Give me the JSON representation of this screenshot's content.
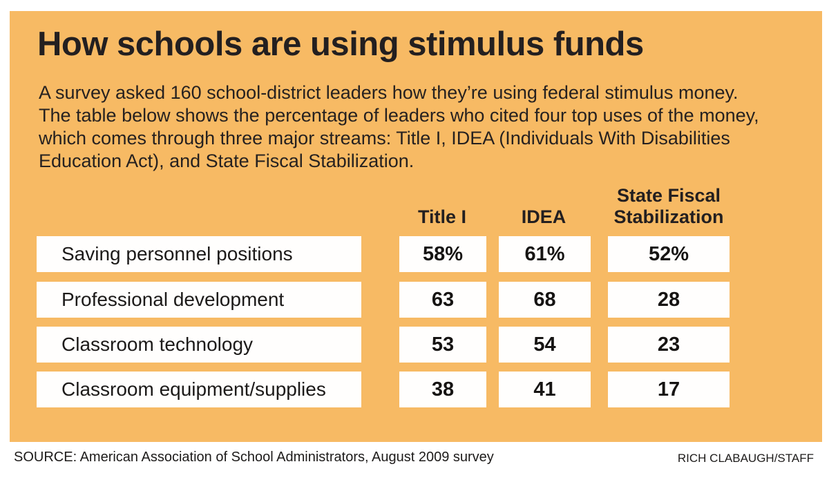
{
  "infographic": {
    "title": "How schools are using stimulus funds",
    "description": "A survey asked 160 school-district leaders how they’re using federal stimulus money. The table below shows the percentage of leaders who cited four top uses of the money, which comes through three major streams: Title I, IDEA (Individuals With Disabilities Education Act), and State Fiscal Stabilization.",
    "colors": {
      "panel_background": "#F7BA64",
      "heading_text": "#231F20",
      "cell_background": "#FFFFFF"
    }
  },
  "chart_data": {
    "type": "table",
    "title": "How schools are using stimulus funds",
    "columns": [
      "Title I",
      "IDEA",
      "State Fiscal Stabilization"
    ],
    "rows": [
      {
        "label": "Saving personnel positions",
        "values": [
          "58%",
          "61%",
          "52%"
        ]
      },
      {
        "label": "Professional development",
        "values": [
          "63",
          "68",
          "28"
        ]
      },
      {
        "label": "Classroom technology",
        "values": [
          "53",
          "54",
          "23"
        ]
      },
      {
        "label": "Classroom equipment/supplies",
        "values": [
          "38",
          "41",
          "17"
        ]
      }
    ],
    "values_unit": "percentage of leaders who cited each use"
  },
  "footer": {
    "source": "SOURCE: American Association of School Administrators, August 2009 survey",
    "credit": "RICH CLABAUGH/STAFF"
  }
}
